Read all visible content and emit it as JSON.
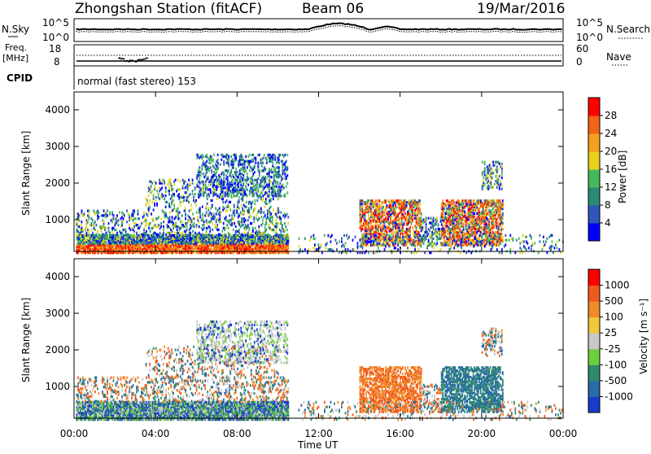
{
  "header": {
    "station": "Zhongshan Station (fitACF)",
    "beam": "Beam 06",
    "date": "19/Mar/2016"
  },
  "top_panel": {
    "left_label": "N.Sky",
    "right_label": "N.Search",
    "left_ticks": [
      "10^5",
      "10^0"
    ],
    "right_ticks": [
      "10^5",
      "10^0"
    ]
  },
  "freq_panel": {
    "left_label_1": "Freq.",
    "left_label_2": "[MHz]",
    "left_ticks": [
      "18",
      "8"
    ],
    "right_label": "Nave",
    "right_ticks": [
      "60",
      "0"
    ],
    "cpid_label": "CPID",
    "cpid_text": "normal (fast stereo) 153"
  },
  "chart_data": [
    {
      "type": "heatmap",
      "ylabel": "Slant Range [km]",
      "yticks": [
        "4000",
        "3000",
        "2000",
        "1000"
      ],
      "colorbar_label": "Power [dB]",
      "colorbar_ticks": [
        "28",
        "24",
        "20",
        "16",
        "12",
        "8",
        "4"
      ],
      "colors": [
        "#0000ff",
        "#2d56b8",
        "#2a8a78",
        "#46b85a",
        "#e8d21e",
        "#f5a01e",
        "#f06414",
        "#ff0000"
      ]
    },
    {
      "type": "heatmap",
      "ylabel": "Slant Range [km]",
      "yticks": [
        "4000",
        "3000",
        "2000",
        "1000"
      ],
      "colorbar_label": "Velocity [m s⁻¹]",
      "colorbar_ticks": [
        "1000",
        "500",
        "100",
        "25",
        "-25",
        "-100",
        "-500",
        "-1000"
      ],
      "colors": [
        "#1a3ccc",
        "#2a6aa6",
        "#2f8a6e",
        "#6ecf3c",
        "#c8c8c8",
        "#f0c83c",
        "#f08c28",
        "#f05a1e",
        "#ff0000"
      ]
    }
  ],
  "xaxis": {
    "ticks": [
      "00:00",
      "04:00",
      "08:00",
      "12:00",
      "16:00",
      "20:00",
      "00:00"
    ],
    "label": "Time UT"
  }
}
